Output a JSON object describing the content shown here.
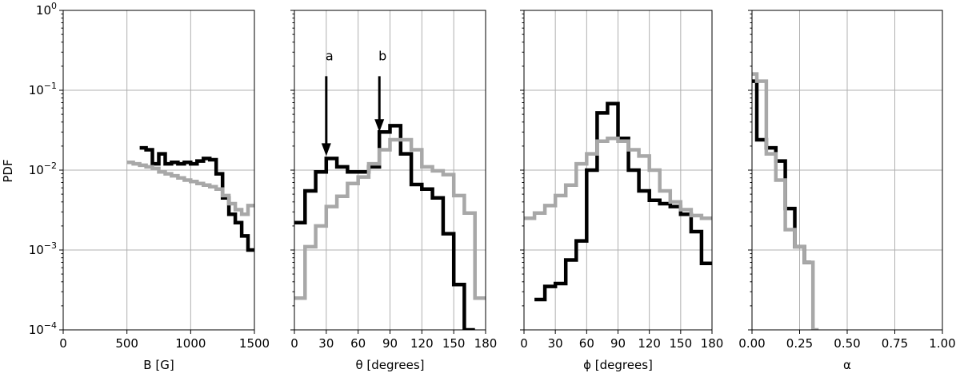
{
  "figure": {
    "ylabel": "PDF",
    "colors": {
      "dark": "#000000",
      "light": "#a8a8a8",
      "grid": "#b0b0b0"
    }
  },
  "chart_data": [
    {
      "type": "line",
      "step": true,
      "xlabel": "B [G]",
      "ylabel": "PDF",
      "yscale": "log",
      "xlim": [
        0,
        1500
      ],
      "ylim": [
        0.0001,
        1
      ],
      "xticks": [
        0,
        500,
        1000,
        1500
      ],
      "xtick_labels": [
        "0",
        "500",
        "1000",
        "1500"
      ],
      "ytick_labels": [
        "10^-4",
        "10^-3",
        "10^-2",
        "10^-1",
        "10^0"
      ],
      "grid": true,
      "series": [
        {
          "color": "dark",
          "edges": [
            600,
            650,
            700,
            750,
            800,
            850,
            900,
            950,
            1000,
            1050,
            1100,
            1150,
            1200,
            1250,
            1300,
            1350,
            1400,
            1450,
            1500
          ],
          "values": [
            0.019,
            0.018,
            0.012,
            0.016,
            0.012,
            0.0125,
            0.012,
            0.0125,
            0.012,
            0.013,
            0.014,
            0.0135,
            0.009,
            0.0045,
            0.0028,
            0.0022,
            0.0015,
            0.001
          ]
        },
        {
          "color": "light",
          "edges": [
            500,
            550,
            600,
            650,
            700,
            750,
            800,
            850,
            900,
            950,
            1000,
            1050,
            1100,
            1150,
            1200,
            1250,
            1300,
            1350,
            1400,
            1450,
            1500
          ],
          "values": [
            0.0125,
            0.012,
            0.0115,
            0.011,
            0.0105,
            0.0095,
            0.009,
            0.0085,
            0.008,
            0.0075,
            0.0072,
            0.0068,
            0.0065,
            0.0062,
            0.0058,
            0.0048,
            0.0038,
            0.0032,
            0.0028,
            0.0036
          ]
        }
      ]
    },
    {
      "type": "line",
      "step": true,
      "xlabel": "θ [degrees]",
      "yscale": "log",
      "xlim": [
        0,
        180
      ],
      "ylim": [
        0.0001,
        1
      ],
      "xticks": [
        0,
        30,
        60,
        90,
        120,
        150,
        180
      ],
      "xtick_labels": [
        "0",
        "30",
        "60",
        "90",
        "120",
        "150",
        "180"
      ],
      "grid": true,
      "annotations": [
        {
          "text": "a",
          "x": 30,
          "y_tail": 0.15,
          "y_head": 0.015
        },
        {
          "text": "b",
          "x": 80,
          "y_tail": 0.15,
          "y_head": 0.03
        }
      ],
      "series": [
        {
          "color": "dark",
          "edges": [
            0,
            10,
            20,
            30,
            40,
            50,
            60,
            70,
            80,
            90,
            100,
            110,
            120,
            130,
            140,
            150,
            160,
            170
          ],
          "values": [
            0.0022,
            0.0055,
            0.0095,
            0.014,
            0.011,
            0.0095,
            0.0095,
            0.011,
            0.03,
            0.036,
            0.016,
            0.0066,
            0.0058,
            0.0045,
            0.0016,
            0.00037,
            8e-05
          ]
        },
        {
          "color": "light",
          "edges": [
            0,
            10,
            20,
            30,
            40,
            50,
            60,
            70,
            80,
            90,
            100,
            110,
            120,
            130,
            140,
            150,
            160,
            170,
            180
          ],
          "values": [
            0.00025,
            0.0011,
            0.002,
            0.0035,
            0.0047,
            0.0068,
            0.0082,
            0.012,
            0.018,
            0.024,
            0.024,
            0.018,
            0.011,
            0.0098,
            0.0088,
            0.0048,
            0.0029,
            0.00025
          ]
        }
      ]
    },
    {
      "type": "line",
      "step": true,
      "xlabel": "ϕ [degrees]",
      "yscale": "log",
      "xlim": [
        0,
        180
      ],
      "ylim": [
        0.0001,
        1
      ],
      "xticks": [
        0,
        30,
        60,
        90,
        120,
        150,
        180
      ],
      "xtick_labels": [
        "0",
        "30",
        "60",
        "90",
        "120",
        "150",
        "180"
      ],
      "grid": true,
      "series": [
        {
          "color": "dark",
          "edges": [
            10,
            20,
            30,
            40,
            50,
            60,
            70,
            80,
            90,
            100,
            110,
            120,
            130,
            140,
            150,
            160,
            170,
            180
          ],
          "values": [
            0.00024,
            0.00035,
            0.00038,
            0.00075,
            0.0013,
            0.01,
            0.052,
            0.068,
            0.025,
            0.01,
            0.0055,
            0.0042,
            0.0038,
            0.0035,
            0.0028,
            0.0017,
            0.00068
          ]
        },
        {
          "color": "light",
          "edges": [
            0,
            10,
            20,
            30,
            40,
            50,
            60,
            70,
            80,
            90,
            100,
            110,
            120,
            130,
            140,
            150,
            160,
            170,
            180
          ],
          "values": [
            0.0025,
            0.0029,
            0.0036,
            0.0048,
            0.0065,
            0.012,
            0.016,
            0.023,
            0.025,
            0.023,
            0.018,
            0.015,
            0.01,
            0.0055,
            0.004,
            0.0032,
            0.0027,
            0.0025
          ]
        }
      ]
    },
    {
      "type": "line",
      "step": true,
      "xlabel": "α",
      "yscale": "log",
      "xlim": [
        0,
        1
      ],
      "ylim": [
        0.0001,
        1
      ],
      "xticks": [
        0,
        0.25,
        0.5,
        0.75,
        1
      ],
      "xtick_labels": [
        "0.00",
        "0.25",
        "0.50",
        "0.75",
        "1.00"
      ],
      "grid": true,
      "series": [
        {
          "color": "dark",
          "edges": [
            0,
            0.025,
            0.075,
            0.125,
            0.175,
            0.225,
            0.275,
            0.31
          ],
          "values": [
            0.13,
            0.024,
            0.019,
            0.013,
            0.0033,
            0.0011,
            0.0007
          ]
        },
        {
          "color": "light",
          "edges": [
            0,
            0.025,
            0.075,
            0.125,
            0.175,
            0.225,
            0.275,
            0.32,
            0.35
          ],
          "values": [
            0.16,
            0.13,
            0.016,
            0.0075,
            0.0018,
            0.0011,
            0.0007,
            9e-05
          ]
        }
      ]
    }
  ]
}
